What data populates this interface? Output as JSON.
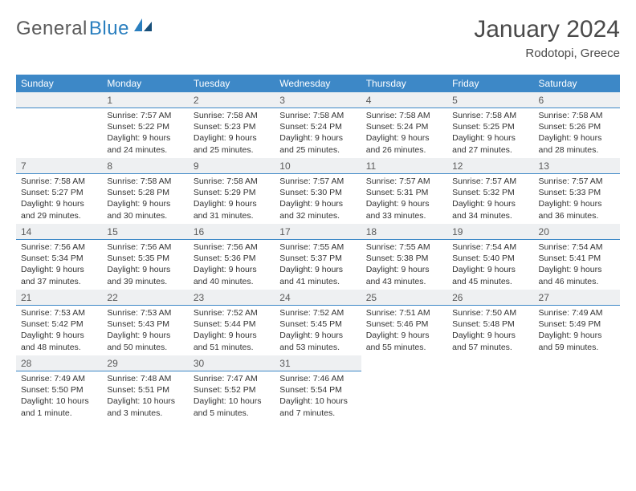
{
  "logo": {
    "first": "General",
    "second": "Blue"
  },
  "title": "January 2024",
  "location": "Rodotopi, Greece",
  "colors": {
    "header_bg": "#3d88c7",
    "header_text": "#ffffff",
    "daynum_bg": "#eef0f2",
    "daynum_border": "#3d88c7",
    "body_text": "#333333",
    "logo_grey": "#5a5a5a",
    "logo_blue": "#2a7fbf",
    "page_bg": "#ffffff"
  },
  "typography": {
    "title_fontsize": 30,
    "location_fontsize": 15,
    "dayhead_fontsize": 12,
    "daynum_fontsize": 12,
    "body_fontsize": 10.5,
    "logo_fontsize": 24
  },
  "layout": {
    "columns": 7,
    "rows": 5
  },
  "dayNames": [
    "Sunday",
    "Monday",
    "Tuesday",
    "Wednesday",
    "Thursday",
    "Friday",
    "Saturday"
  ],
  "weeks": [
    [
      {
        "day": "",
        "sunrise": "",
        "sunset": "",
        "daylight": ""
      },
      {
        "day": "1",
        "sunrise": "Sunrise: 7:57 AM",
        "sunset": "Sunset: 5:22 PM",
        "daylight": "Daylight: 9 hours and 24 minutes."
      },
      {
        "day": "2",
        "sunrise": "Sunrise: 7:58 AM",
        "sunset": "Sunset: 5:23 PM",
        "daylight": "Daylight: 9 hours and 25 minutes."
      },
      {
        "day": "3",
        "sunrise": "Sunrise: 7:58 AM",
        "sunset": "Sunset: 5:24 PM",
        "daylight": "Daylight: 9 hours and 25 minutes."
      },
      {
        "day": "4",
        "sunrise": "Sunrise: 7:58 AM",
        "sunset": "Sunset: 5:24 PM",
        "daylight": "Daylight: 9 hours and 26 minutes."
      },
      {
        "day": "5",
        "sunrise": "Sunrise: 7:58 AM",
        "sunset": "Sunset: 5:25 PM",
        "daylight": "Daylight: 9 hours and 27 minutes."
      },
      {
        "day": "6",
        "sunrise": "Sunrise: 7:58 AM",
        "sunset": "Sunset: 5:26 PM",
        "daylight": "Daylight: 9 hours and 28 minutes."
      }
    ],
    [
      {
        "day": "7",
        "sunrise": "Sunrise: 7:58 AM",
        "sunset": "Sunset: 5:27 PM",
        "daylight": "Daylight: 9 hours and 29 minutes."
      },
      {
        "day": "8",
        "sunrise": "Sunrise: 7:58 AM",
        "sunset": "Sunset: 5:28 PM",
        "daylight": "Daylight: 9 hours and 30 minutes."
      },
      {
        "day": "9",
        "sunrise": "Sunrise: 7:58 AM",
        "sunset": "Sunset: 5:29 PM",
        "daylight": "Daylight: 9 hours and 31 minutes."
      },
      {
        "day": "10",
        "sunrise": "Sunrise: 7:57 AM",
        "sunset": "Sunset: 5:30 PM",
        "daylight": "Daylight: 9 hours and 32 minutes."
      },
      {
        "day": "11",
        "sunrise": "Sunrise: 7:57 AM",
        "sunset": "Sunset: 5:31 PM",
        "daylight": "Daylight: 9 hours and 33 minutes."
      },
      {
        "day": "12",
        "sunrise": "Sunrise: 7:57 AM",
        "sunset": "Sunset: 5:32 PM",
        "daylight": "Daylight: 9 hours and 34 minutes."
      },
      {
        "day": "13",
        "sunrise": "Sunrise: 7:57 AM",
        "sunset": "Sunset: 5:33 PM",
        "daylight": "Daylight: 9 hours and 36 minutes."
      }
    ],
    [
      {
        "day": "14",
        "sunrise": "Sunrise: 7:56 AM",
        "sunset": "Sunset: 5:34 PM",
        "daylight": "Daylight: 9 hours and 37 minutes."
      },
      {
        "day": "15",
        "sunrise": "Sunrise: 7:56 AM",
        "sunset": "Sunset: 5:35 PM",
        "daylight": "Daylight: 9 hours and 39 minutes."
      },
      {
        "day": "16",
        "sunrise": "Sunrise: 7:56 AM",
        "sunset": "Sunset: 5:36 PM",
        "daylight": "Daylight: 9 hours and 40 minutes."
      },
      {
        "day": "17",
        "sunrise": "Sunrise: 7:55 AM",
        "sunset": "Sunset: 5:37 PM",
        "daylight": "Daylight: 9 hours and 41 minutes."
      },
      {
        "day": "18",
        "sunrise": "Sunrise: 7:55 AM",
        "sunset": "Sunset: 5:38 PM",
        "daylight": "Daylight: 9 hours and 43 minutes."
      },
      {
        "day": "19",
        "sunrise": "Sunrise: 7:54 AM",
        "sunset": "Sunset: 5:40 PM",
        "daylight": "Daylight: 9 hours and 45 minutes."
      },
      {
        "day": "20",
        "sunrise": "Sunrise: 7:54 AM",
        "sunset": "Sunset: 5:41 PM",
        "daylight": "Daylight: 9 hours and 46 minutes."
      }
    ],
    [
      {
        "day": "21",
        "sunrise": "Sunrise: 7:53 AM",
        "sunset": "Sunset: 5:42 PM",
        "daylight": "Daylight: 9 hours and 48 minutes."
      },
      {
        "day": "22",
        "sunrise": "Sunrise: 7:53 AM",
        "sunset": "Sunset: 5:43 PM",
        "daylight": "Daylight: 9 hours and 50 minutes."
      },
      {
        "day": "23",
        "sunrise": "Sunrise: 7:52 AM",
        "sunset": "Sunset: 5:44 PM",
        "daylight": "Daylight: 9 hours and 51 minutes."
      },
      {
        "day": "24",
        "sunrise": "Sunrise: 7:52 AM",
        "sunset": "Sunset: 5:45 PM",
        "daylight": "Daylight: 9 hours and 53 minutes."
      },
      {
        "day": "25",
        "sunrise": "Sunrise: 7:51 AM",
        "sunset": "Sunset: 5:46 PM",
        "daylight": "Daylight: 9 hours and 55 minutes."
      },
      {
        "day": "26",
        "sunrise": "Sunrise: 7:50 AM",
        "sunset": "Sunset: 5:48 PM",
        "daylight": "Daylight: 9 hours and 57 minutes."
      },
      {
        "day": "27",
        "sunrise": "Sunrise: 7:49 AM",
        "sunset": "Sunset: 5:49 PM",
        "daylight": "Daylight: 9 hours and 59 minutes."
      }
    ],
    [
      {
        "day": "28",
        "sunrise": "Sunrise: 7:49 AM",
        "sunset": "Sunset: 5:50 PM",
        "daylight": "Daylight: 10 hours and 1 minute."
      },
      {
        "day": "29",
        "sunrise": "Sunrise: 7:48 AM",
        "sunset": "Sunset: 5:51 PM",
        "daylight": "Daylight: 10 hours and 3 minutes."
      },
      {
        "day": "30",
        "sunrise": "Sunrise: 7:47 AM",
        "sunset": "Sunset: 5:52 PM",
        "daylight": "Daylight: 10 hours and 5 minutes."
      },
      {
        "day": "31",
        "sunrise": "Sunrise: 7:46 AM",
        "sunset": "Sunset: 5:54 PM",
        "daylight": "Daylight: 10 hours and 7 minutes."
      },
      {
        "day": "",
        "sunrise": "",
        "sunset": "",
        "daylight": ""
      },
      {
        "day": "",
        "sunrise": "",
        "sunset": "",
        "daylight": ""
      },
      {
        "day": "",
        "sunrise": "",
        "sunset": "",
        "daylight": ""
      }
    ]
  ]
}
